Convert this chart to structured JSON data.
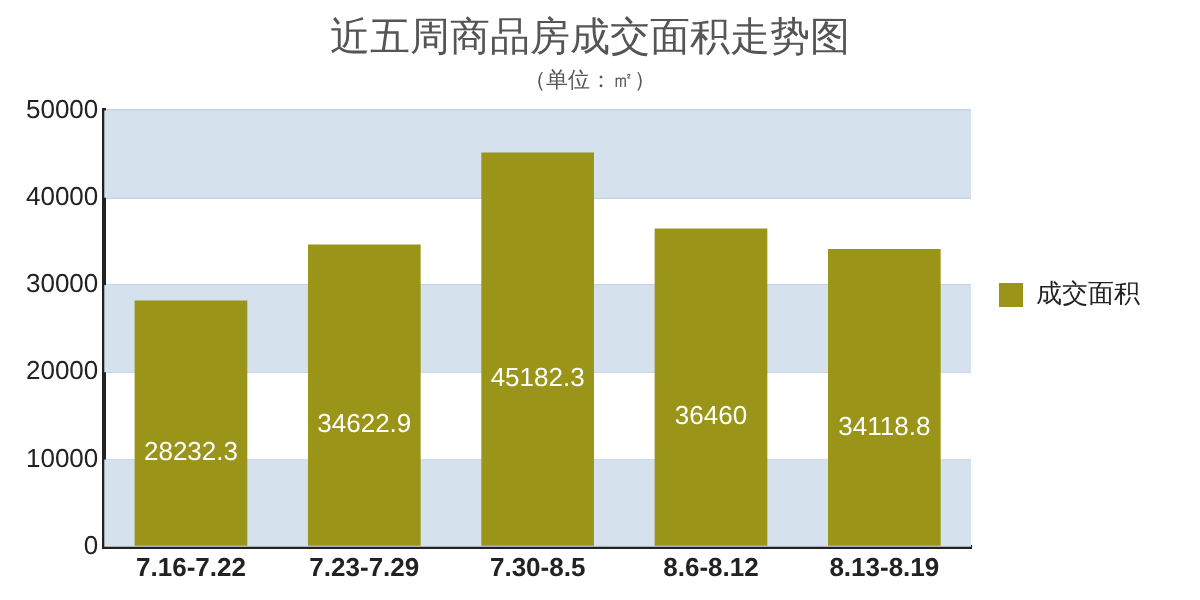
{
  "chart_data": {
    "type": "bar",
    "title": "近五周商品房成交面积走势图",
    "subtitle": "（单位：㎡）",
    "categories": [
      "7.16-7.22",
      "7.23-7.29",
      "7.30-8.5",
      "8.6-8.12",
      "8.13-8.19"
    ],
    "series": [
      {
        "name": "成交面积",
        "color": "#9a9418",
        "values": [
          28232.3,
          34622.9,
          45182.3,
          36460,
          34118.8
        ]
      }
    ],
    "ylim": [
      0,
      50000
    ],
    "yticks": [
      0,
      10000,
      20000,
      30000,
      40000,
      50000
    ],
    "grid": "y",
    "legend": "right",
    "data_labels": true
  }
}
